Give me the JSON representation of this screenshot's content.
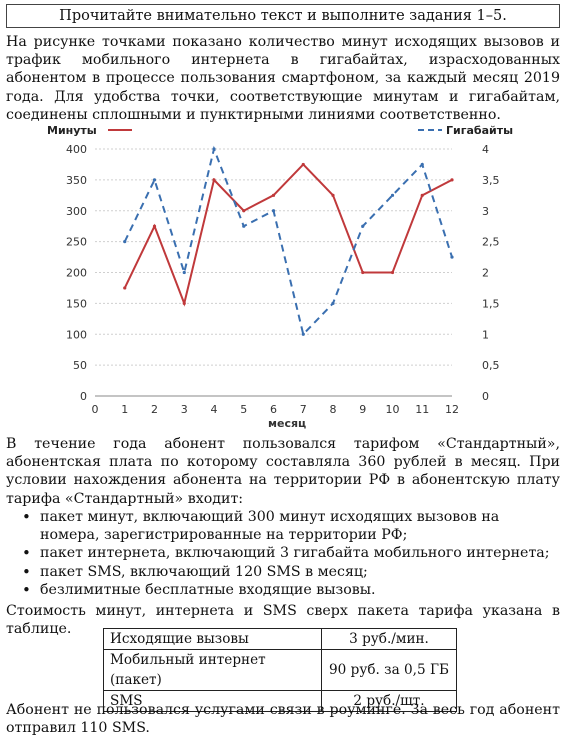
{
  "header": {
    "title": "Прочитайте внимательно текст и выполните задания 1–5."
  },
  "intro": "На рисунке точками показано количество минут исходящих вызовов и трафик мобильного интернета в гигабайтах, израсходованных абонентом в процессе пользования смартфоном, за каждый месяц 2019 года. Для удобства точки, соответствующие минутам и гигабайтам, соединены сплошными и пунктирными линиями соответственно.",
  "chart_data": {
    "type": "line",
    "x": [
      1,
      2,
      3,
      4,
      5,
      6,
      7,
      8,
      9,
      10,
      11,
      12
    ],
    "xlabel": "месяц",
    "x_ticks": [
      "0",
      "1",
      "2",
      "3",
      "4",
      "5",
      "6",
      "7",
      "8",
      "9",
      "10",
      "11",
      "12"
    ],
    "xlim": [
      0,
      12
    ],
    "y_left": {
      "label": "Минуты",
      "ylim": [
        0,
        400
      ],
      "ticks": [
        "0",
        "50",
        "100",
        "150",
        "200",
        "250",
        "300",
        "350",
        "400"
      ]
    },
    "y_right": {
      "label": "Гигабайты",
      "ylim": [
        0,
        4
      ],
      "ticks": [
        "0",
        "0,5",
        "1",
        "1,5",
        "2",
        "2,5",
        "3",
        "3,5",
        "4"
      ]
    },
    "grid": "horizontal dotted",
    "legend": [
      "top-left",
      "top-right"
    ],
    "series": [
      {
        "name": "Минуты",
        "axis": "left",
        "style": "solid",
        "color": "#c0393b",
        "values": [
          175,
          275,
          150,
          350,
          300,
          325,
          375,
          325,
          200,
          200,
          325,
          350
        ]
      },
      {
        "name": "Гигабайты",
        "axis": "right",
        "style": "dashed",
        "color": "#3a6fb0",
        "values": [
          2.5,
          3.5,
          2,
          4,
          2.75,
          3,
          1,
          1.5,
          2.75,
          3.25,
          3.75,
          2.25
        ]
      }
    ]
  },
  "tariff_intro": "В течение года абонент пользовался тарифом «Стандартный», абонентская плата по которому составляла 360 рублей в месяц. При условии нахождения абонента на территории РФ в абонентскую плату тарифа «Стандартный» входит:",
  "bullets": [
    "пакет минут, включающий 300 минут исходящих вызовов на номера, зарегистрированные на территории РФ;",
    "пакет интернета, включающий 3 гигабайта мобильного интернета;",
    "пакет SMS, включающий 120 SMS в месяц;",
    "безлимитные бесплатные входящие вызовы."
  ],
  "table_intro": "Стоимость минут, интернета и SMS сверх пакета тарифа указана в таблице.",
  "table": [
    {
      "service": "Исходящие вызовы",
      "price": "3 руб./мин."
    },
    {
      "service": "Мобильный интернет (пакет)",
      "price": "90 руб. за 0,5 ГБ"
    },
    {
      "service": "SMS",
      "price": "2 руб./шт."
    }
  ],
  "footer": "Абонент не пользовался услугами связи в роуминге. За весь год абонент отправил 110 SMS."
}
